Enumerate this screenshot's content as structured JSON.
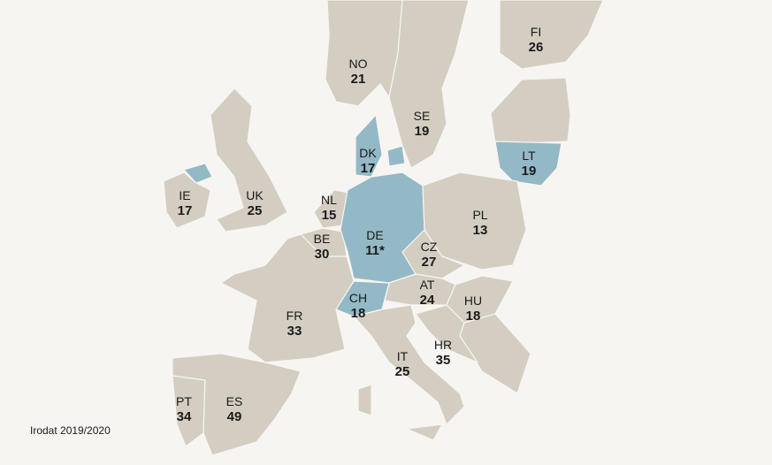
{
  "regions": [
    {
      "code": "NO",
      "value": 21,
      "highlighted": false
    },
    {
      "code": "SE",
      "value": 19,
      "highlighted": false
    },
    {
      "code": "FI",
      "value": 26,
      "highlighted": false
    },
    {
      "code": "DK",
      "value": 17,
      "highlighted": true
    },
    {
      "code": "LT",
      "value": 19,
      "highlighted": true
    },
    {
      "code": "IE",
      "value": 17,
      "highlighted": false
    },
    {
      "code": "UK",
      "value": 25,
      "highlighted": false
    },
    {
      "code": "NL",
      "value": 15,
      "highlighted": false
    },
    {
      "code": "BE",
      "value": 30,
      "highlighted": false
    },
    {
      "code": "DE",
      "value": "11*",
      "highlighted": true
    },
    {
      "code": "CZ",
      "value": 27,
      "highlighted": false
    },
    {
      "code": "PL",
      "value": 13,
      "highlighted": false
    },
    {
      "code": "AT",
      "value": 24,
      "highlighted": false
    },
    {
      "code": "CH",
      "value": 18,
      "highlighted": true
    },
    {
      "code": "HU",
      "value": 18,
      "highlighted": false
    },
    {
      "code": "FR",
      "value": 33,
      "highlighted": false
    },
    {
      "code": "HR",
      "value": 35,
      "highlighted": false
    },
    {
      "code": "IT",
      "value": 25,
      "highlighted": false
    },
    {
      "code": "PT",
      "value": 34,
      "highlighted": false
    },
    {
      "code": "ES",
      "value": 49,
      "highlighted": false
    }
  ],
  "source": "Irodat 2019/2020"
}
